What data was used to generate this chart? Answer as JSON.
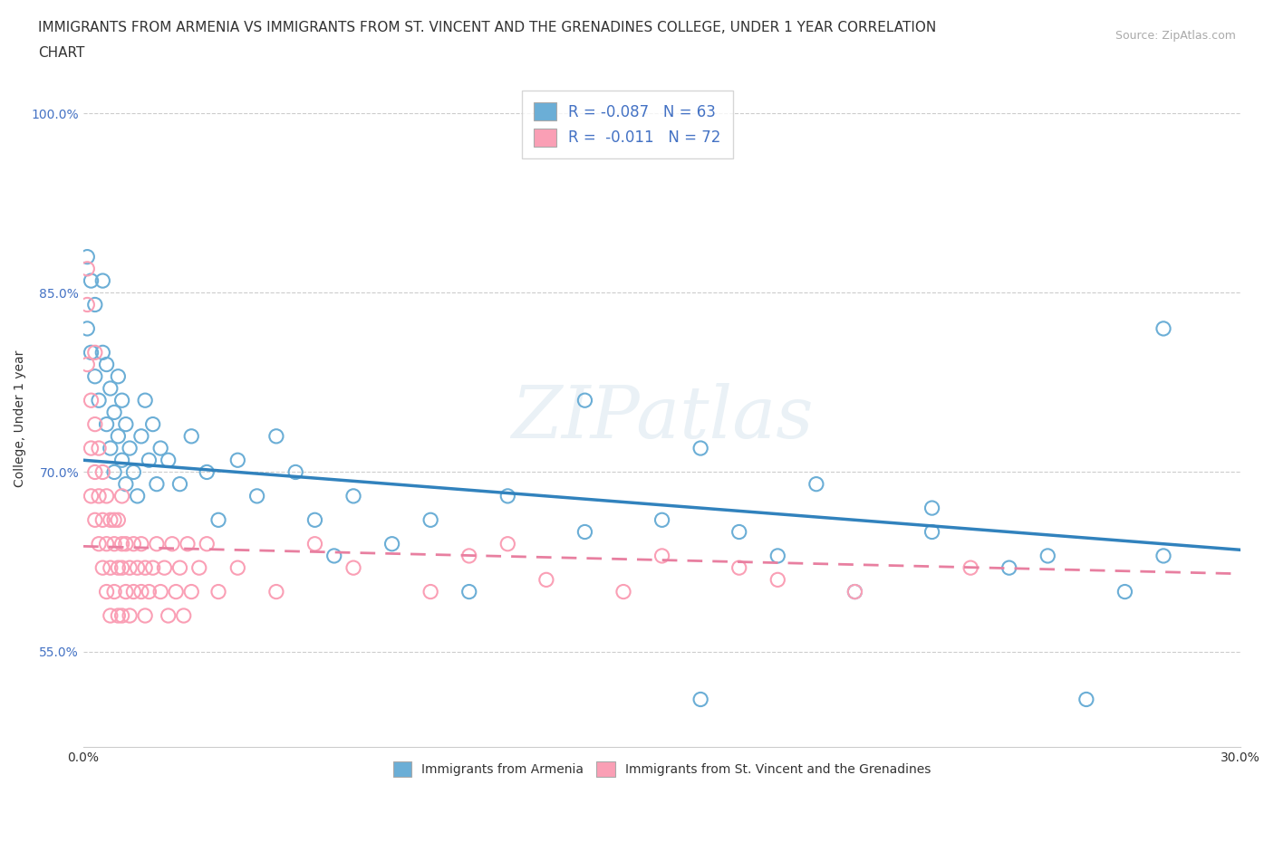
{
  "title_line1": "IMMIGRANTS FROM ARMENIA VS IMMIGRANTS FROM ST. VINCENT AND THE GRENADINES COLLEGE, UNDER 1 YEAR CORRELATION",
  "title_line2": "CHART",
  "source_text": "Source: ZipAtlas.com",
  "ylabel": "College, Under 1 year",
  "watermark": "ZIPatlas",
  "armenia_R": -0.087,
  "armenia_N": 63,
  "svg_R": -0.011,
  "svg_N": 72,
  "armenia_color": "#6baed6",
  "svg_color": "#fa9fb5",
  "armenia_line_color": "#3182bd",
  "svg_line_color": "#e87fa0",
  "xmin": 0.0,
  "xmax": 0.3,
  "ymin": 0.47,
  "ymax": 1.02,
  "x_ticks": [
    0.0,
    0.05,
    0.1,
    0.15,
    0.2,
    0.25,
    0.3
  ],
  "x_tick_labels": [
    "0.0%",
    "",
    "",
    "",
    "",
    "",
    "30.0%"
  ],
  "y_ticks": [
    0.55,
    0.7,
    0.85,
    1.0
  ],
  "y_tick_labels": [
    "55.0%",
    "70.0%",
    "85.0%",
    "100.0%"
  ],
  "armenia_x": [
    0.001,
    0.001,
    0.002,
    0.002,
    0.003,
    0.003,
    0.004,
    0.005,
    0.005,
    0.006,
    0.006,
    0.007,
    0.007,
    0.008,
    0.008,
    0.009,
    0.009,
    0.01,
    0.01,
    0.011,
    0.011,
    0.012,
    0.013,
    0.014,
    0.015,
    0.016,
    0.017,
    0.018,
    0.019,
    0.02,
    0.022,
    0.025,
    0.028,
    0.032,
    0.035,
    0.04,
    0.045,
    0.05,
    0.055,
    0.06,
    0.065,
    0.07,
    0.08,
    0.09,
    0.1,
    0.11,
    0.13,
    0.15,
    0.16,
    0.17,
    0.18,
    0.2,
    0.22,
    0.24,
    0.26,
    0.28,
    0.13,
    0.16,
    0.19,
    0.22,
    0.25,
    0.27,
    0.28
  ],
  "armenia_y": [
    0.82,
    0.88,
    0.8,
    0.86,
    0.78,
    0.84,
    0.76,
    0.8,
    0.86,
    0.74,
    0.79,
    0.72,
    0.77,
    0.7,
    0.75,
    0.73,
    0.78,
    0.71,
    0.76,
    0.69,
    0.74,
    0.72,
    0.7,
    0.68,
    0.73,
    0.76,
    0.71,
    0.74,
    0.69,
    0.72,
    0.71,
    0.69,
    0.73,
    0.7,
    0.66,
    0.71,
    0.68,
    0.73,
    0.7,
    0.66,
    0.63,
    0.68,
    0.64,
    0.66,
    0.6,
    0.68,
    0.65,
    0.66,
    0.51,
    0.65,
    0.63,
    0.6,
    0.65,
    0.62,
    0.51,
    0.63,
    0.76,
    0.72,
    0.69,
    0.67,
    0.63,
    0.6,
    0.82
  ],
  "svg_x": [
    0.001,
    0.001,
    0.001,
    0.002,
    0.002,
    0.002,
    0.003,
    0.003,
    0.003,
    0.003,
    0.004,
    0.004,
    0.004,
    0.005,
    0.005,
    0.005,
    0.006,
    0.006,
    0.006,
    0.007,
    0.007,
    0.007,
    0.008,
    0.008,
    0.008,
    0.009,
    0.009,
    0.009,
    0.01,
    0.01,
    0.01,
    0.01,
    0.011,
    0.011,
    0.012,
    0.012,
    0.013,
    0.013,
    0.014,
    0.015,
    0.015,
    0.016,
    0.016,
    0.017,
    0.018,
    0.019,
    0.02,
    0.021,
    0.022,
    0.023,
    0.024,
    0.025,
    0.026,
    0.027,
    0.028,
    0.03,
    0.032,
    0.035,
    0.04,
    0.05,
    0.06,
    0.07,
    0.09,
    0.11,
    0.14,
    0.17,
    0.2,
    0.23,
    0.1,
    0.12,
    0.15,
    0.18
  ],
  "svg_y": [
    0.87,
    0.84,
    0.79,
    0.76,
    0.72,
    0.68,
    0.74,
    0.7,
    0.66,
    0.8,
    0.72,
    0.68,
    0.64,
    0.7,
    0.66,
    0.62,
    0.68,
    0.64,
    0.6,
    0.66,
    0.62,
    0.58,
    0.64,
    0.6,
    0.66,
    0.62,
    0.58,
    0.66,
    0.62,
    0.58,
    0.64,
    0.68,
    0.6,
    0.64,
    0.62,
    0.58,
    0.64,
    0.6,
    0.62,
    0.64,
    0.6,
    0.62,
    0.58,
    0.6,
    0.62,
    0.64,
    0.6,
    0.62,
    0.58,
    0.64,
    0.6,
    0.62,
    0.58,
    0.64,
    0.6,
    0.62,
    0.64,
    0.6,
    0.62,
    0.6,
    0.64,
    0.62,
    0.6,
    0.64,
    0.6,
    0.62,
    0.6,
    0.62,
    0.63,
    0.61,
    0.63,
    0.61
  ],
  "title_fontsize": 11,
  "label_fontsize": 10,
  "tick_fontsize": 10,
  "legend_fontsize": 12,
  "arm_line_y0": 0.71,
  "arm_line_y1": 0.635,
  "svg_line_y0": 0.638,
  "svg_line_y1": 0.615
}
